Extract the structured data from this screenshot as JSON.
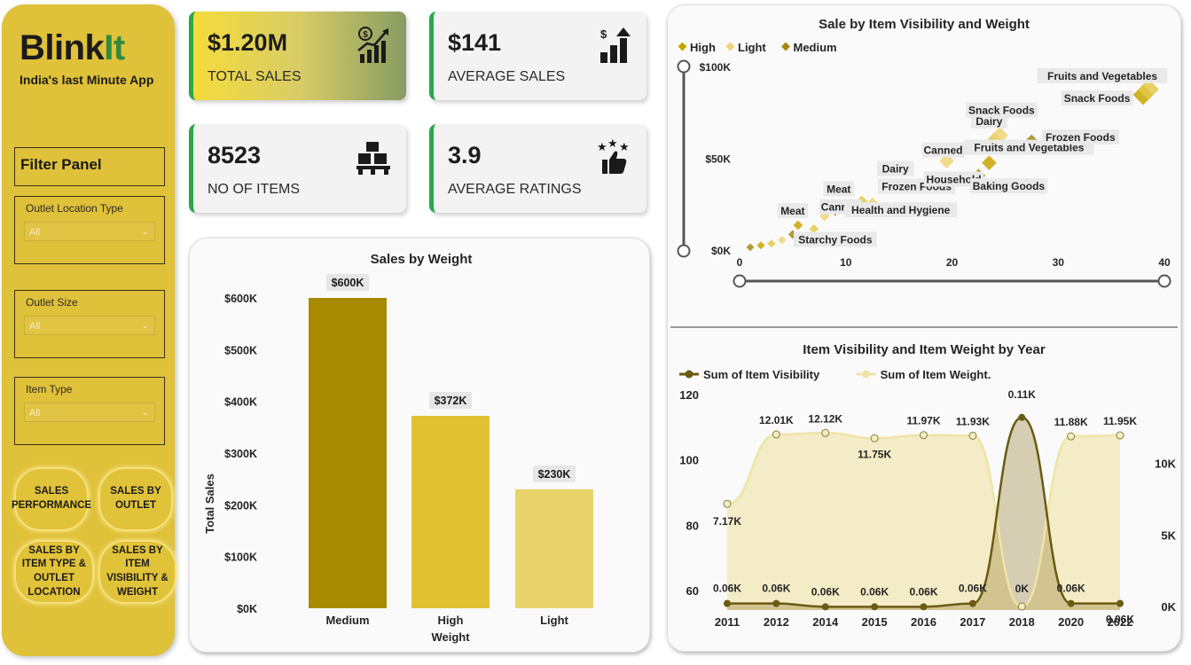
{
  "sidebar": {
    "brand_part1": "Blink",
    "brand_part2": "It",
    "tagline": "India's last Minute App",
    "filter_title": "Filter Panel",
    "filters": [
      {
        "label": "Outlet Location Type",
        "value": "All"
      },
      {
        "label": "Outlet Size",
        "value": "All"
      },
      {
        "label": "Item Type",
        "value": "All"
      }
    ],
    "nav": [
      {
        "label": "SALES PERFORMANCE"
      },
      {
        "label": "SALES BY OUTLET"
      },
      {
        "label": "SALES BY ITEM TYPE & OUTLET LOCATION"
      },
      {
        "label": "SALES BY ITEM VISIBILITY & WEIGHT"
      }
    ],
    "colors": {
      "sidebar": "#dfc13a",
      "brand_accent": "#2f8a3d"
    }
  },
  "kpis": [
    {
      "value": "$1.20M",
      "caption": "TOTAL SALES",
      "icon": "sales-growth-icon"
    },
    {
      "value": "$141",
      "caption": "AVERAGE SALES",
      "icon": "dollar-bar-chart-icon"
    },
    {
      "value": "8523",
      "caption": "NO OF ITEMS",
      "icon": "boxes-pallet-icon"
    },
    {
      "value": "3.9",
      "caption": "AVERAGE RATINGS",
      "icon": "thumbs-up-stars-icon"
    }
  ],
  "chart_data": [
    {
      "type": "bar",
      "title": "Sales by Weight",
      "xlabel": "Weight",
      "ylabel": "Total Sales",
      "categories": [
        "Medium",
        "High",
        "Light"
      ],
      "values": [
        600,
        372,
        230
      ],
      "data_labels": [
        "$600K",
        "$372K",
        "$230K"
      ],
      "colors": [
        "#a88b00",
        "#e0c233",
        "#e8d36b"
      ],
      "yticks": [
        "$0K",
        "$100K",
        "$200K",
        "$300K",
        "$400K",
        "$500K",
        "$600K"
      ],
      "ylim": [
        0,
        600
      ]
    },
    {
      "type": "scatter",
      "title": "Sale by Item Visibility and Weight",
      "legend": [
        "High",
        "Light",
        "Medium"
      ],
      "legend_placement": "top-left",
      "legend_colors": [
        "#c9a400",
        "#ecd574",
        "#a6880f"
      ],
      "xticks": [
        "0",
        "10",
        "20",
        "30",
        "40"
      ],
      "yticks": [
        "$0K",
        "$50K",
        "$100K"
      ],
      "xlim": [
        0,
        40
      ],
      "ylim": [
        0,
        100
      ],
      "points": [
        {
          "x": 1,
          "y": 2,
          "label": ""
        },
        {
          "x": 2,
          "y": 3,
          "label": ""
        },
        {
          "x": 3,
          "y": 4,
          "label": ""
        },
        {
          "x": 4,
          "y": 6,
          "label": ""
        },
        {
          "x": 5,
          "y": 9,
          "label": "Starchy Foods"
        },
        {
          "x": 5.5,
          "y": 14,
          "label": "Meat"
        },
        {
          "x": 7,
          "y": 12,
          "label": ""
        },
        {
          "x": 8,
          "y": 19,
          "label": "Canned"
        },
        {
          "x": 9,
          "y": 22,
          "label": ""
        },
        {
          "x": 10,
          "y": 24,
          "label": "Meat"
        },
        {
          "x": 11.5,
          "y": 27,
          "label": ""
        },
        {
          "x": 12.5,
          "y": 26,
          "label": "Health and Hygiene"
        },
        {
          "x": 14.5,
          "y": 35,
          "label": "Dairy"
        },
        {
          "x": 17,
          "y": 36,
          "label": "Frozen Foods"
        },
        {
          "x": 18,
          "y": 36,
          "label": "Household"
        },
        {
          "x": 19.5,
          "y": 49,
          "label": "Canned"
        },
        {
          "x": 22.5,
          "y": 41,
          "label": "Baking Goods"
        },
        {
          "x": 23.5,
          "y": 48,
          "label": "Fruits and Vegetables"
        },
        {
          "x": 24,
          "y": 60,
          "label": "Dairy"
        },
        {
          "x": 24.5,
          "y": 63,
          "label": "Snack Foods"
        },
        {
          "x": 27.5,
          "y": 59,
          "label": "Frozen Foods"
        },
        {
          "x": 38,
          "y": 85,
          "label": "Snack Foods"
        },
        {
          "x": 38.5,
          "y": 88,
          "label": "Fruits and Vegetables"
        }
      ]
    },
    {
      "type": "line",
      "title": "Item Visibility and Item Weight by Year",
      "x": [
        "2011",
        "2012",
        "2014",
        "2015",
        "2016",
        "2017",
        "2018",
        "2020",
        "2022"
      ],
      "series": [
        {
          "name": "Sum of Item Visibility",
          "axis": "left",
          "values": [
            56,
            56,
            55,
            55,
            55,
            56,
            113,
            56,
            56
          ],
          "labels": [
            "0.06K",
            "0.06K",
            "0.06K",
            "0.06K",
            "0.06K",
            "0.06K",
            "0.11K",
            "0.06K",
            "0.06K"
          ],
          "color": "#6b5a12"
        },
        {
          "name": "Sum of Item Weight.",
          "axis": "right",
          "values": [
            7170,
            12010,
            12120,
            11750,
            11970,
            11930,
            0,
            11880,
            11950
          ],
          "labels": [
            "7.17K",
            "12.01K",
            "12.12K",
            "11.75K",
            "11.97K",
            "11.93K",
            "0K",
            "11.88K",
            "11.95K"
          ],
          "color": "#efe4a6"
        }
      ],
      "left_ticks": [
        "60",
        "80",
        "100",
        "120"
      ],
      "left_ylim": [
        54,
        120
      ],
      "right_ticks": [
        "0K",
        "5K",
        "10K"
      ],
      "right_ylim": [
        0,
        14800
      ],
      "legend_placement": "top-left"
    }
  ]
}
